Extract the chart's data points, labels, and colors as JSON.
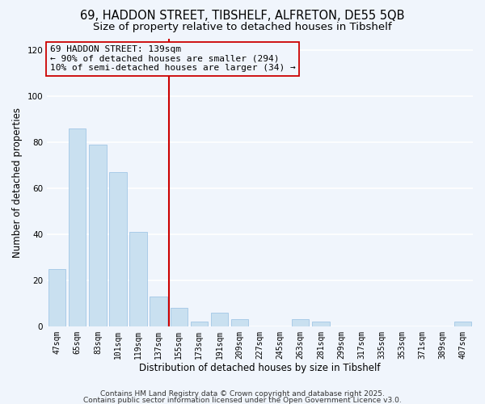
{
  "title": "69, HADDON STREET, TIBSHELF, ALFRETON, DE55 5QB",
  "subtitle": "Size of property relative to detached houses in Tibshelf",
  "xlabel": "Distribution of detached houses by size in Tibshelf",
  "ylabel": "Number of detached properties",
  "bar_labels": [
    "47sqm",
    "65sqm",
    "83sqm",
    "101sqm",
    "119sqm",
    "137sqm",
    "155sqm",
    "173sqm",
    "191sqm",
    "209sqm",
    "227sqm",
    "245sqm",
    "263sqm",
    "281sqm",
    "299sqm",
    "317sqm",
    "335sqm",
    "353sqm",
    "371sqm",
    "389sqm",
    "407sqm"
  ],
  "bar_values": [
    25,
    86,
    79,
    67,
    41,
    13,
    8,
    2,
    6,
    3,
    0,
    0,
    3,
    2,
    0,
    0,
    0,
    0,
    0,
    0,
    2
  ],
  "bar_color": "#c9e0f0",
  "bar_edge_color": "#aacce8",
  "vline_x": 5.5,
  "vline_color": "#cc0000",
  "annotation_title": "69 HADDON STREET: 139sqm",
  "annotation_line1": "← 90% of detached houses are smaller (294)",
  "annotation_line2": "10% of semi-detached houses are larger (34) →",
  "ylim": [
    0,
    125
  ],
  "yticks": [
    0,
    20,
    40,
    60,
    80,
    100,
    120
  ],
  "footnote1": "Contains HM Land Registry data © Crown copyright and database right 2025.",
  "footnote2": "Contains public sector information licensed under the Open Government Licence v3.0.",
  "background_color": "#f0f5fc",
  "grid_color": "#ffffff",
  "title_fontsize": 10.5,
  "subtitle_fontsize": 9.5,
  "axis_label_fontsize": 8.5,
  "tick_fontsize": 7,
  "annotation_fontsize": 8,
  "footnote_fontsize": 6.5
}
